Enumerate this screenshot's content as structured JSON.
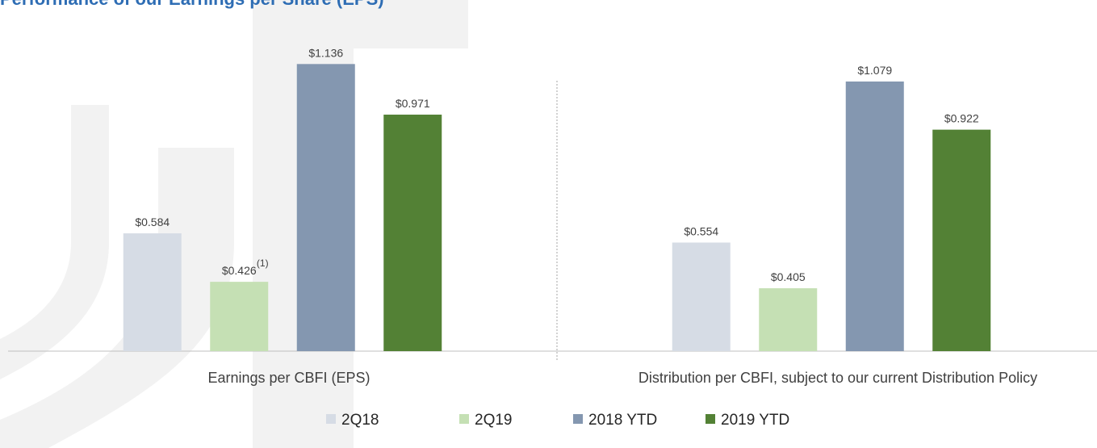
{
  "chart_data": {
    "type": "bar",
    "title": "Performance of our Earnings per Share (EPS)",
    "categories": [
      "Earnings per CBFI (EPS)",
      "Distribution per CBFI, subject to our current Distribution Policy"
    ],
    "series": [
      {
        "name": "2Q18",
        "color": "#d6dce5",
        "values": [
          0.584,
          0.554
        ],
        "value_labels": [
          "$0.584",
          "$0.554"
        ]
      },
      {
        "name": "2Q19",
        "color": "#c5e0b4",
        "values": [
          0.426,
          0.405
        ],
        "value_labels": [
          "$0.426",
          "$0.405"
        ]
      },
      {
        "name": "2018 YTD",
        "color": "#8497b0",
        "values": [
          1.136,
          1.079
        ],
        "value_labels": [
          "$1.136",
          "$1.079"
        ]
      },
      {
        "name": "2019 YTD",
        "color": "#538135",
        "values": [
          0.971,
          0.922
        ],
        "value_labels": [
          "$0.971",
          "$0.922"
        ]
      }
    ],
    "annotation": "(1)",
    "ylim": [
      0.2,
      1.2
    ],
    "legend": "bottom"
  }
}
